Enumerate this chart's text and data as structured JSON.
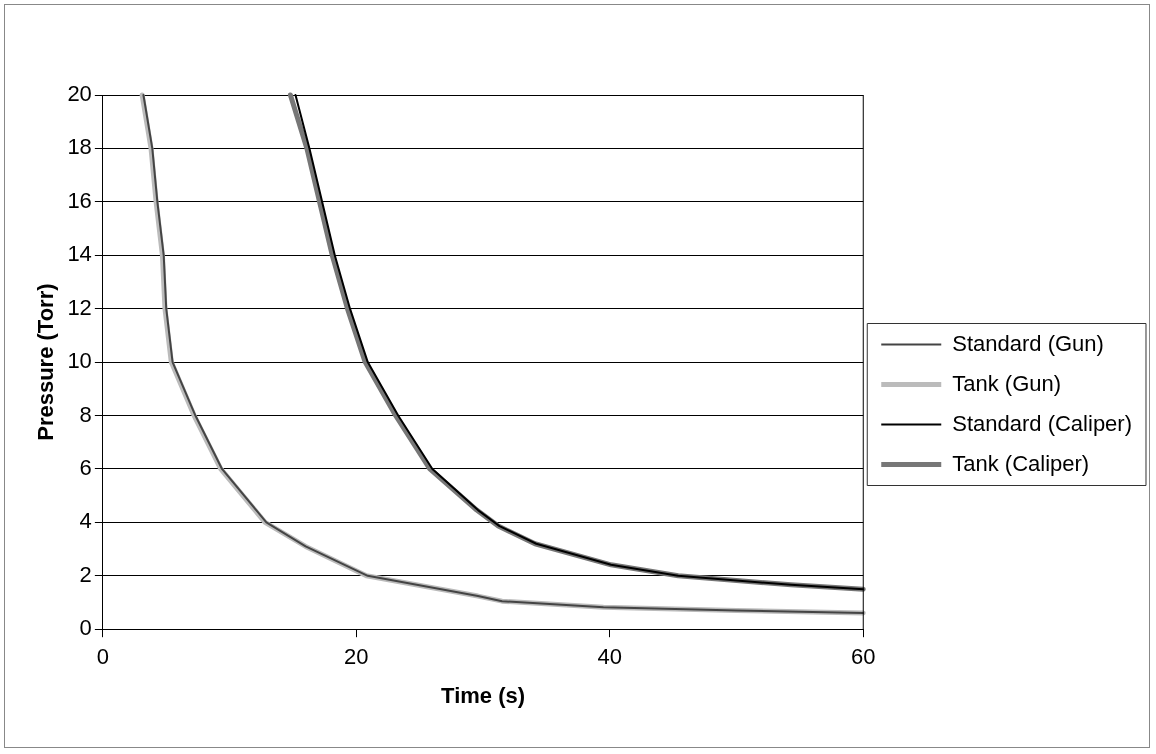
{
  "chart_data": {
    "type": "line",
    "xlabel": "Time (s)",
    "ylabel": "Pressure (Torr)",
    "xlim": [
      0,
      60
    ],
    "xticks": [
      0,
      20,
      40,
      60
    ],
    "ylim": [
      0,
      20
    ],
    "yticks": [
      0,
      2,
      4,
      6,
      8,
      10,
      12,
      14,
      16,
      18,
      20
    ],
    "grid": "y",
    "legend": "right",
    "marker": "none",
    "line_style": "solid",
    "series": [
      {
        "name": "Standard (Gun)",
        "color": "#444444",
        "x": [
          3.2,
          3.9,
          4.3,
          4.8,
          5.0,
          5.5,
          6.4,
          7.3,
          9.4,
          12.9,
          16,
          20.9,
          29.6,
          31.5,
          39.5,
          50,
          60
        ],
        "values": [
          20,
          18,
          16,
          14,
          12,
          10,
          9,
          8,
          6,
          4,
          3.1,
          2,
          1.24,
          1.05,
          0.82,
          0.7,
          0.61
        ]
      },
      {
        "name": "Tank (Gun)",
        "color": "#bbbbbb",
        "x": [
          3.1,
          3.8,
          4.2,
          4.7,
          4.9,
          5.4,
          6.3,
          7.2,
          9.3,
          12.8,
          16,
          20.8,
          29.6,
          31.5,
          39.5,
          50,
          60
        ],
        "values": [
          20,
          18,
          16,
          14,
          12,
          10,
          9,
          8,
          6,
          4,
          3.1,
          2,
          1.24,
          1.05,
          0.82,
          0.7,
          0.61
        ]
      },
      {
        "name": "Standard (Caliper)",
        "color": "#000000",
        "x": [
          15.2,
          16.3,
          17.3,
          18.3,
          19.5,
          20.9,
          23.3,
          26,
          29.6,
          31.3,
          34.2,
          40.1,
          45.4,
          54.3,
          60
        ],
        "values": [
          20,
          18,
          16,
          14,
          12,
          10,
          8,
          6,
          4.46,
          3.86,
          3.2,
          2.41,
          2,
          1.66,
          1.5
        ]
      },
      {
        "name": "Tank (Caliper)",
        "color": "#777777",
        "x": [
          14.8,
          16.1,
          17.1,
          18.1,
          19.3,
          20.7,
          23.1,
          25.8,
          29.5,
          31.2,
          34.1,
          40.1,
          45.4,
          54.3,
          60
        ],
        "values": [
          20,
          18,
          16,
          14,
          12,
          10,
          8,
          6,
          4.46,
          3.86,
          3.2,
          2.41,
          2,
          1.66,
          1.5
        ]
      }
    ]
  }
}
